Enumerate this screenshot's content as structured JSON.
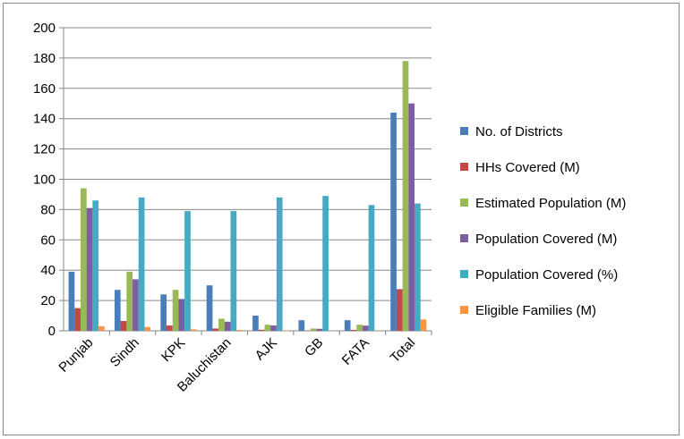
{
  "chart_data": {
    "type": "bar",
    "categories": [
      "Punjab",
      "Sindh",
      "KPK",
      "Baluchistan",
      "AJK",
      "GB",
      "FATA",
      "Total"
    ],
    "ylim": [
      0,
      200
    ],
    "yticks": [
      0,
      20,
      40,
      60,
      80,
      100,
      120,
      140,
      160,
      180,
      200
    ],
    "grid": true,
    "legend_position": "right",
    "series": [
      {
        "name": "No. of Districts",
        "color": "#4a7ebb",
        "values": [
          39,
          27,
          24,
          30,
          10,
          7,
          7,
          144
        ]
      },
      {
        "name": "HHs Covered (M)",
        "color": "#be4b48",
        "values": [
          15,
          6.5,
          3.5,
          1.5,
          0.7,
          0.3,
          0.6,
          27.5
        ]
      },
      {
        "name": "Estimated Population (M)",
        "color": "#98b954",
        "values": [
          94,
          39,
          27,
          8,
          4,
          1.5,
          4,
          178
        ]
      },
      {
        "name": "Population Covered (M)",
        "color": "#7d5fa0",
        "values": [
          81,
          34,
          21,
          6,
          3.5,
          1.3,
          3.4,
          150
        ]
      },
      {
        "name": "Population Covered (%)",
        "color": "#46aac5",
        "values": [
          86,
          88,
          79,
          79,
          88,
          89,
          83,
          84
        ]
      },
      {
        "name": "Eligible Families (M)",
        "color": "#f79646",
        "values": [
          3,
          2.5,
          1,
          0.6,
          0.3,
          0.1,
          0.2,
          7.5
        ]
      }
    ]
  }
}
